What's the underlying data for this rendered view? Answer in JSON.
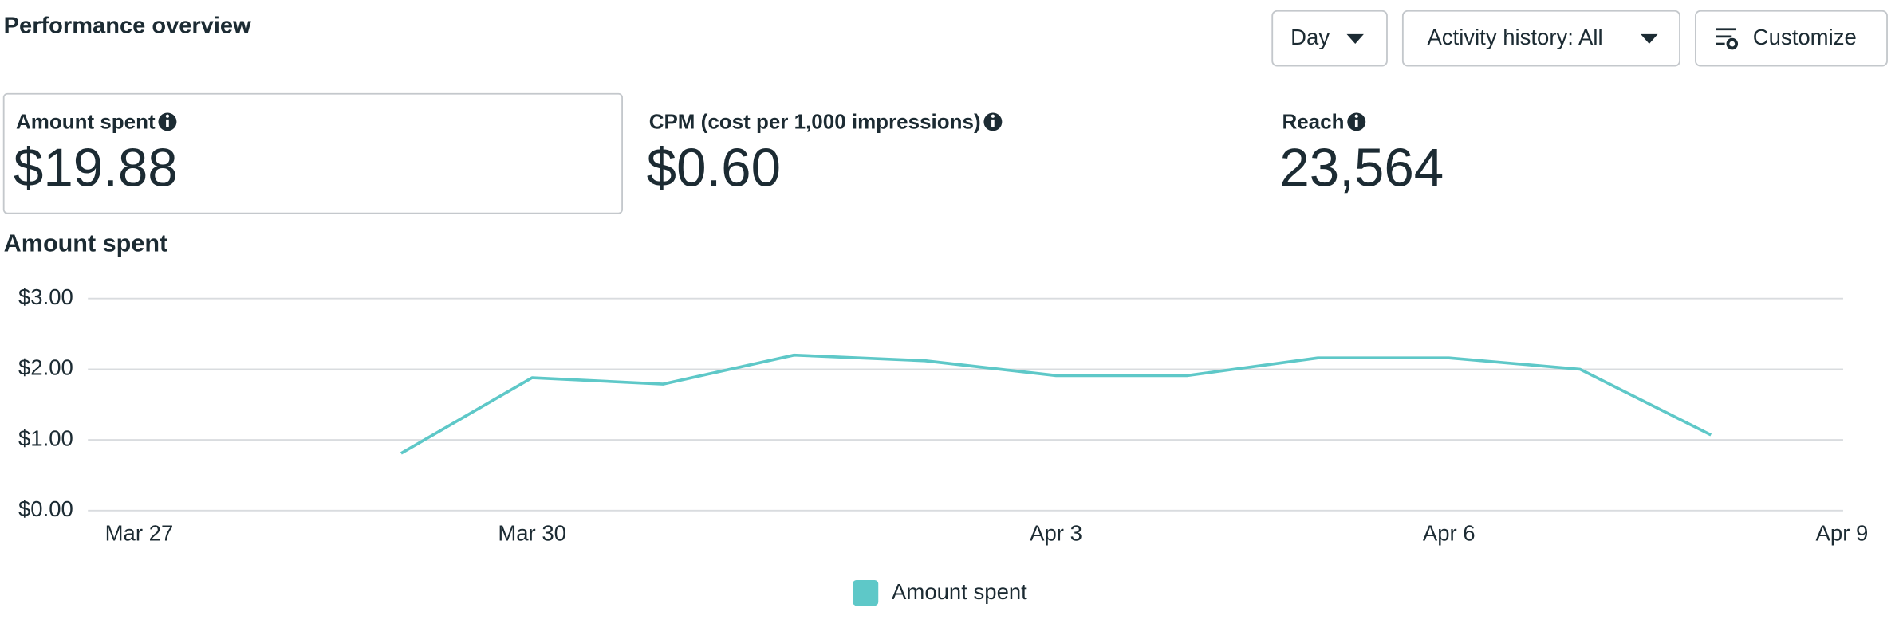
{
  "header": {
    "title": "Performance overview"
  },
  "controls": {
    "period": "Day",
    "activity": "Activity history: All",
    "customize": "Customize"
  },
  "metrics": [
    {
      "label": "Amount spent",
      "value": "$19.88"
    },
    {
      "label": "CPM (cost per 1,000 impressions)",
      "value": "$0.60"
    },
    {
      "label": "Reach",
      "value": "23,564"
    }
  ],
  "chart_data": {
    "type": "line",
    "title": "Amount spent",
    "categories": [
      "Mar 27",
      null,
      null,
      "Mar 30",
      null,
      null,
      null,
      "Apr 3",
      null,
      null,
      "Apr 6",
      null,
      null,
      "Apr 9"
    ],
    "series": [
      {
        "name": "Amount spent",
        "color": "#5ec8c8",
        "values": [
          null,
          null,
          0.81,
          1.88,
          1.79,
          2.2,
          2.12,
          1.91,
          1.91,
          2.16,
          2.16,
          2.0,
          1.07,
          null
        ]
      }
    ],
    "ylim": [
      0,
      3
    ],
    "yticks": [
      {
        "value": 0,
        "label": "$0.00"
      },
      {
        "value": 1,
        "label": "$1.00"
      },
      {
        "value": 2,
        "label": "$2.00"
      },
      {
        "value": 3,
        "label": "$3.00"
      }
    ],
    "grid": true,
    "legend": "bottom"
  }
}
